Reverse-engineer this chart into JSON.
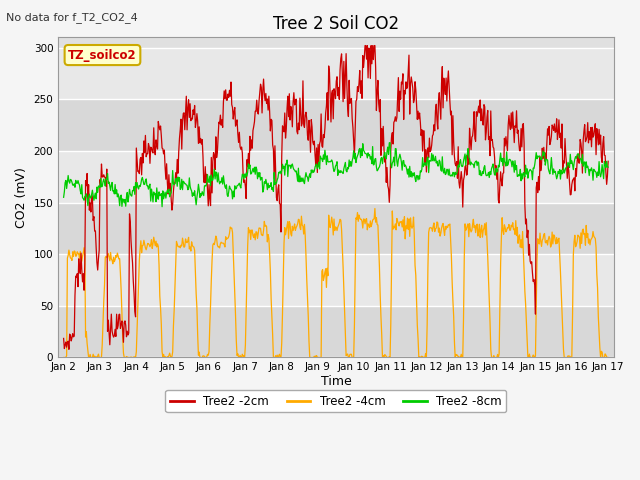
{
  "title": "Tree 2 Soil CO2",
  "no_data_text": "No data for f_T2_CO2_4",
  "ylabel": "CO2 (mV)",
  "xlabel": "Time",
  "box_label": "TZ_soilco2",
  "ylim": [
    0,
    310
  ],
  "yticks": [
    0,
    50,
    100,
    150,
    200,
    250,
    300
  ],
  "legend_labels": [
    "Tree2 -2cm",
    "Tree2 -4cm",
    "Tree2 -8cm"
  ],
  "line_colors": [
    "#cc0000",
    "#ffaa00",
    "#00cc00"
  ],
  "axes_bg_color": "#e0e0e0",
  "band_colors": [
    "#d8d8d8",
    "#e8e8e8"
  ],
  "grid_color": "#ffffff",
  "fig_bg_color": "#f5f5f5",
  "num_points": 720,
  "x_start": 2.0,
  "x_end": 17.0,
  "xlim_start": 1.85,
  "xlim_end": 17.15,
  "xtick_positions": [
    2,
    3,
    4,
    5,
    6,
    7,
    8,
    9,
    10,
    11,
    12,
    13,
    14,
    15,
    16,
    17
  ],
  "xtick_labels": [
    "Jan 2",
    "Jan 3",
    "Jan 4",
    "Jan 5",
    "Jan 6",
    "Jan 7",
    "Jan 8",
    "Jan 9",
    "Jan 10",
    "Jan 11",
    "Jan 12",
    "Jan 13",
    "Jan 14",
    "Jan 15",
    "Jan 16",
    "Jan 17"
  ]
}
